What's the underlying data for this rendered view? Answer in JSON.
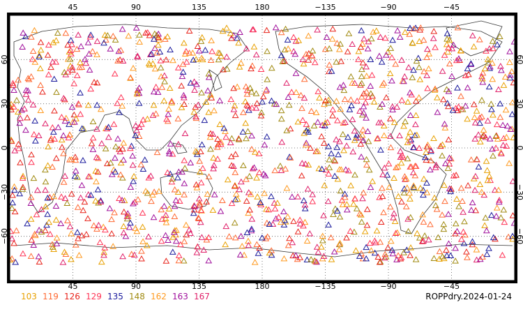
{
  "map": {
    "caption": "ROPPdry.2024-01-24",
    "top_lon_ticks": [
      "45",
      "90",
      "135",
      "180",
      "−135",
      "−90",
      "−45"
    ],
    "bottom_lon_ticks": [
      "45",
      "90",
      "135",
      "180",
      "−135",
      "−90",
      "−45"
    ],
    "lat_ticks_left": [
      "60",
      "30",
      "0",
      "−30",
      "−60"
    ],
    "lat_ticks_right": [
      "60",
      "30",
      "0",
      "−30",
      "−60"
    ],
    "lon_tick_values": [
      45,
      90,
      135,
      180,
      225,
      270,
      315
    ],
    "lat_tick_values": [
      60,
      30,
      0,
      -30,
      -60
    ],
    "lon_range": [
      0,
      360
    ],
    "lat_range": [
      -90,
      90
    ],
    "grid": "dotted",
    "marker": "open-triangle",
    "legend": [
      {
        "label": "103",
        "color": "#e8a000"
      },
      {
        "label": "119",
        "color": "#ff6a33"
      },
      {
        "label": "126",
        "color": "#e8231a"
      },
      {
        "label": "129",
        "color": "#ff3355"
      },
      {
        "label": "135",
        "color": "#1a1a9c"
      },
      {
        "label": "148",
        "color": "#a08a10"
      },
      {
        "label": "162",
        "color": "#ff9a20"
      },
      {
        "label": "163",
        "color": "#a0109c"
      },
      {
        "label": "167",
        "color": "#e0206a"
      }
    ]
  }
}
